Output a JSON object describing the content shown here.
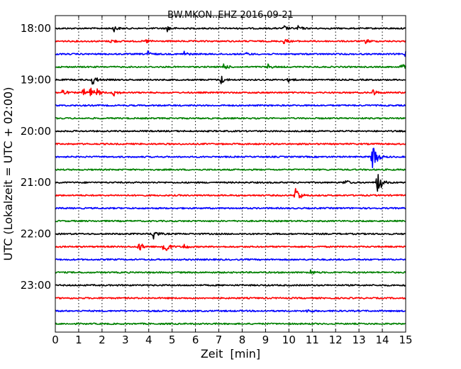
{
  "chart_data": {
    "type": "line",
    "title": "BW.MKON..EHZ 2016-09-21",
    "xlabel": "Zeit  [min]",
    "ylabel": "UTC (Lokalzeit = UTC + 02:00)",
    "xlim": [
      0,
      15
    ],
    "x_ticks": [
      "0",
      "1",
      "2",
      "3",
      "4",
      "5",
      "6",
      "7",
      "8",
      "9",
      "10",
      "11",
      "12",
      "13",
      "14",
      "15"
    ],
    "y_ticks": [
      {
        "label": "18:00",
        "trace_index": 0
      },
      {
        "label": "19:00",
        "trace_index": 4
      },
      {
        "label": "20:00",
        "trace_index": 8
      },
      {
        "label": "21:00",
        "trace_index": 12
      },
      {
        "label": "22:00",
        "trace_index": 16
      },
      {
        "label": "23:00",
        "trace_index": 20
      }
    ],
    "grid": "vertical dotted",
    "colors": [
      "#000000",
      "#ff0000",
      "#0000ff",
      "#008000"
    ],
    "traces": [
      {
        "start": "18:00",
        "events": [
          {
            "t": 2.5,
            "amp": 0.25
          },
          {
            "t": 4.8,
            "amp": 0.25
          },
          {
            "t": 9.8,
            "amp": 0.2
          },
          {
            "t": 10.4,
            "amp": 0.2
          }
        ]
      },
      {
        "start": "18:15",
        "events": [
          {
            "t": 2.4,
            "amp": 0.2
          },
          {
            "t": 3.9,
            "amp": 0.15
          },
          {
            "t": 9.8,
            "amp": 0.25
          },
          {
            "t": 13.3,
            "amp": 0.2
          }
        ]
      },
      {
        "start": "18:30",
        "events": [
          {
            "t": 3.9,
            "amp": 0.35
          },
          {
            "t": 5.5,
            "amp": 0.25
          },
          {
            "t": 8.2,
            "amp": 0.1
          },
          {
            "t": 15.0,
            "amp": 0.3
          }
        ]
      },
      {
        "start": "18:45",
        "events": [
          {
            "t": 7.2,
            "amp": 0.3
          },
          {
            "t": 9.1,
            "amp": 0.2
          },
          {
            "t": 14.8,
            "amp": 0.3
          }
        ]
      },
      {
        "start": "19:00",
        "events": [
          {
            "t": 1.6,
            "amp": 0.5
          },
          {
            "t": 7.1,
            "amp": 0.35
          },
          {
            "t": 10.0,
            "amp": 0.2
          }
        ]
      },
      {
        "start": "19:15",
        "events": [
          {
            "t": 0.3,
            "amp": 0.3
          },
          {
            "t": 1.2,
            "amp": 0.3
          },
          {
            "t": 1.5,
            "amp": 0.4
          },
          {
            "t": 1.8,
            "amp": 0.25
          },
          {
            "t": 2.5,
            "amp": 0.3
          },
          {
            "t": 13.6,
            "amp": 0.25
          }
        ]
      },
      {
        "start": "19:30",
        "events": []
      },
      {
        "start": "19:45",
        "events": []
      },
      {
        "start": "20:00",
        "events": []
      },
      {
        "start": "20:15",
        "events": []
      },
      {
        "start": "20:30",
        "events": [
          {
            "t": 13.6,
            "amp": 1.7
          }
        ]
      },
      {
        "start": "20:45",
        "events": []
      },
      {
        "start": "21:00",
        "events": [
          {
            "t": 12.4,
            "amp": 0.25
          },
          {
            "t": 13.8,
            "amp": 1.2
          }
        ]
      },
      {
        "start": "21:15",
        "events": [
          {
            "t": 10.3,
            "amp": 0.9
          }
        ]
      },
      {
        "start": "21:30",
        "events": []
      },
      {
        "start": "21:45",
        "events": []
      },
      {
        "start": "22:00",
        "events": [
          {
            "t": 4.2,
            "amp": 0.5
          }
        ]
      },
      {
        "start": "22:15",
        "events": [
          {
            "t": 3.6,
            "amp": 0.4
          },
          {
            "t": 4.65,
            "amp": 1.0
          },
          {
            "t": 5.5,
            "amp": 0.25
          }
        ]
      },
      {
        "start": "22:30",
        "events": []
      },
      {
        "start": "22:45",
        "events": [
          {
            "t": 10.9,
            "amp": 0.25
          }
        ]
      },
      {
        "start": "23:00",
        "events": []
      },
      {
        "start": "23:15",
        "events": []
      },
      {
        "start": "23:30",
        "events": [
          {
            "t": 10.8,
            "amp": 0.15
          }
        ]
      },
      {
        "start": "23:45",
        "events": []
      }
    ]
  }
}
